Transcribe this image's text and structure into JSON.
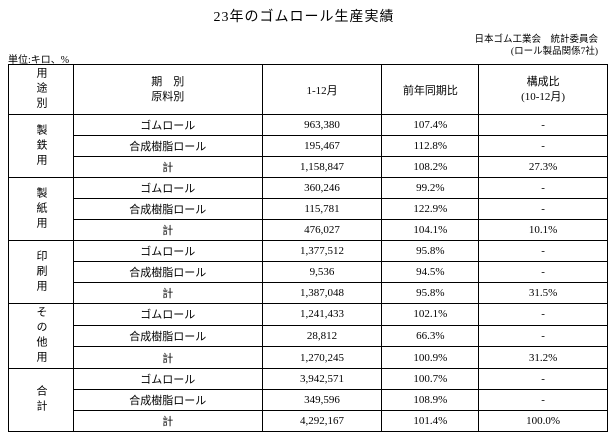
{
  "title": "23年のゴムロール生産実績",
  "unit_note": "単位:キロ、%",
  "source": {
    "line1": "日本ゴム工業会　統計委員会",
    "line2": "(ロール製品関係7社)"
  },
  "table": {
    "headers": {
      "usage": "用途別",
      "period": "期　別",
      "material": "原料別",
      "month": "1-12月",
      "yoy": "前年同期比",
      "comp_line1": "構成比",
      "comp_line2": "(10-12月)"
    },
    "groups": [
      {
        "usage": "製鉄用",
        "rows": [
          {
            "material": "ゴムロール",
            "value": "963,380",
            "yoy": "107.4%",
            "comp": "-"
          },
          {
            "material": "合成樹脂ロール",
            "value": "195,467",
            "yoy": "112.8%",
            "comp": "-"
          },
          {
            "material": "計",
            "value": "1,158,847",
            "yoy": "108.2%",
            "comp": "27.3%"
          }
        ]
      },
      {
        "usage": "製紙用",
        "rows": [
          {
            "material": "ゴムロール",
            "value": "360,246",
            "yoy": "99.2%",
            "comp": "-"
          },
          {
            "material": "合成樹脂ロール",
            "value": "115,781",
            "yoy": "122.9%",
            "comp": "-"
          },
          {
            "material": "計",
            "value": "476,027",
            "yoy": "104.1%",
            "comp": "10.1%"
          }
        ]
      },
      {
        "usage": "印刷用",
        "rows": [
          {
            "material": "ゴムロール",
            "value": "1,377,512",
            "yoy": "95.8%",
            "comp": "-"
          },
          {
            "material": "合成樹脂ロール",
            "value": "9,536",
            "yoy": "94.5%",
            "comp": "-"
          },
          {
            "material": "計",
            "value": "1,387,048",
            "yoy": "95.8%",
            "comp": "31.5%"
          }
        ]
      },
      {
        "usage": "その他用",
        "rows": [
          {
            "material": "ゴムロール",
            "value": "1,241,433",
            "yoy": "102.1%",
            "comp": "-"
          },
          {
            "material": "合成樹脂ロール",
            "value": "28,812",
            "yoy": "66.3%",
            "comp": "-"
          },
          {
            "material": "計",
            "value": "1,270,245",
            "yoy": "100.9%",
            "comp": "31.2%"
          }
        ]
      },
      {
        "usage": "合計",
        "rows": [
          {
            "material": "ゴムロール",
            "value": "3,942,571",
            "yoy": "100.7%",
            "comp": "-"
          },
          {
            "material": "合成樹脂ロール",
            "value": "349,596",
            "yoy": "108.9%",
            "comp": "-"
          },
          {
            "material": "計",
            "value": "4,292,167",
            "yoy": "101.4%",
            "comp": "100.0%"
          }
        ]
      }
    ]
  }
}
